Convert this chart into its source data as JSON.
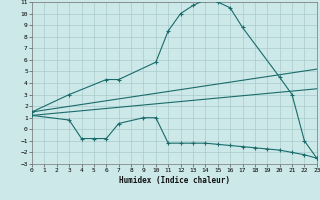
{
  "background_color": "#cce8e8",
  "grid_color": "#aacccc",
  "line_color": "#1a6b6b",
  "xlabel": "Humidex (Indice chaleur)",
  "xlim": [
    0,
    23
  ],
  "ylim": [
    -3,
    11
  ],
  "xticks": [
    0,
    1,
    2,
    3,
    4,
    5,
    6,
    7,
    8,
    9,
    10,
    11,
    12,
    13,
    14,
    15,
    16,
    17,
    18,
    19,
    20,
    21,
    22,
    23
  ],
  "yticks": [
    -3,
    -2,
    -1,
    0,
    1,
    2,
    3,
    4,
    5,
    6,
    7,
    8,
    9,
    10,
    11
  ],
  "curve1_x": [
    0,
    3,
    6,
    7,
    10,
    11,
    12,
    13,
    14,
    15,
    16,
    17,
    20,
    21,
    22,
    23
  ],
  "curve1_y": [
    1.5,
    3.0,
    4.3,
    4.3,
    5.8,
    8.5,
    10.0,
    10.7,
    11.2,
    11.0,
    10.5,
    8.8,
    4.5,
    3.0,
    -1.0,
    -2.5
  ],
  "curve2_x": [
    0,
    3,
    4,
    5,
    6,
    7,
    9,
    10,
    11,
    12,
    13,
    14,
    15,
    16,
    17,
    18,
    19,
    20,
    21,
    22,
    23
  ],
  "curve2_y": [
    1.2,
    0.8,
    -0.8,
    -0.8,
    -0.8,
    0.5,
    1.0,
    1.0,
    -1.2,
    -1.2,
    -1.2,
    -1.2,
    -1.3,
    -1.4,
    -1.5,
    -1.6,
    -1.7,
    -1.8,
    -2.0,
    -2.2,
    -2.5
  ],
  "trendline1_x": [
    0,
    23
  ],
  "trendline1_y": [
    1.5,
    5.2
  ],
  "trendline2_x": [
    0,
    23
  ],
  "trendline2_y": [
    1.2,
    3.5
  ]
}
